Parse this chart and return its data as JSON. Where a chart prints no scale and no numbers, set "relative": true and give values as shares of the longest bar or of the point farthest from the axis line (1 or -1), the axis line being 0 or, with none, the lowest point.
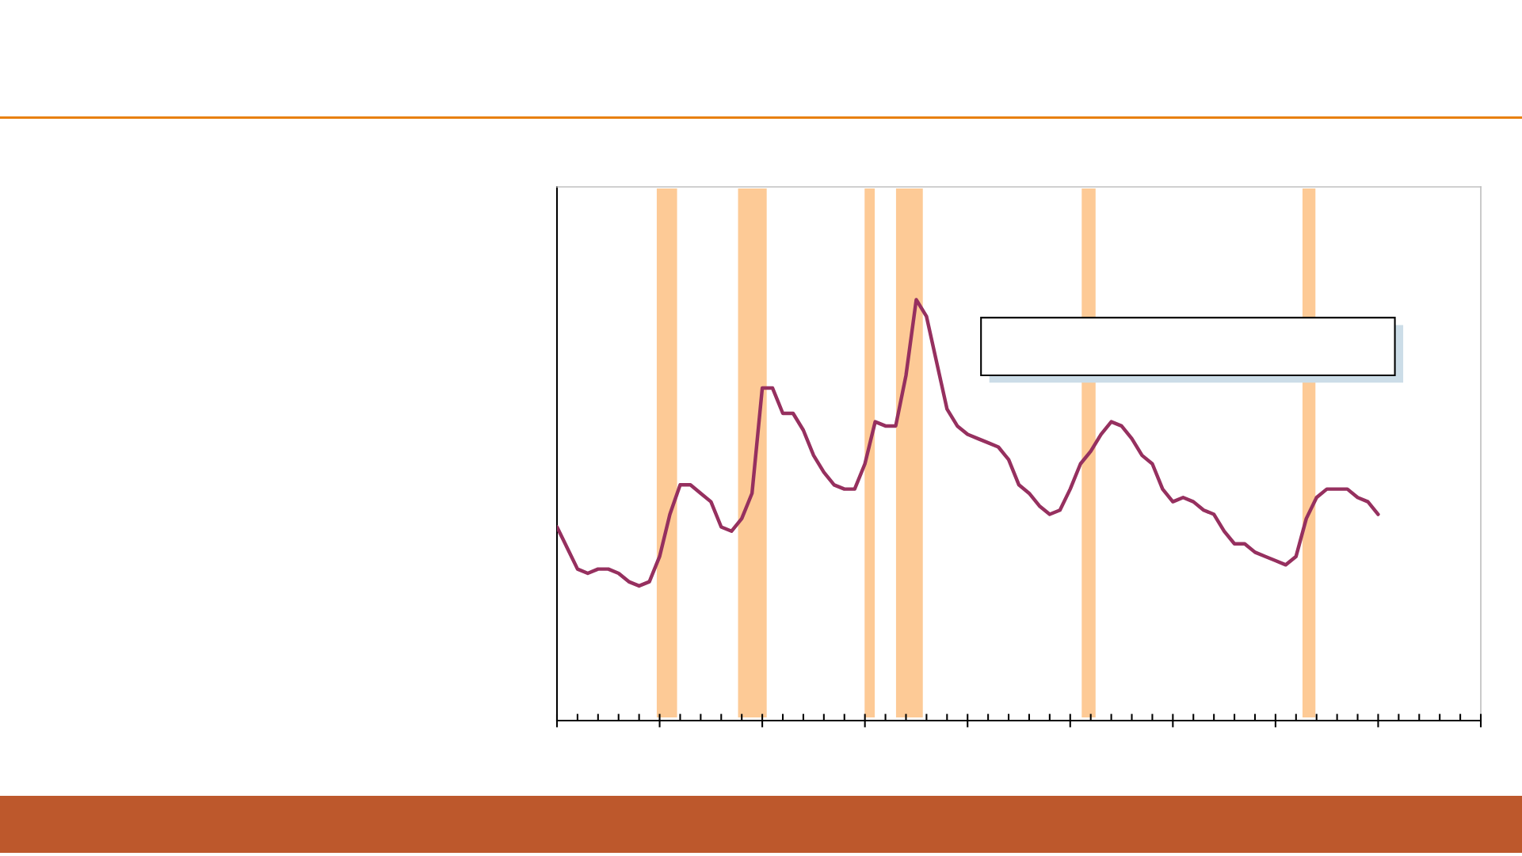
{
  "chart_data": {
    "type": "line",
    "relative": true,
    "categories": [
      null,
      null,
      null,
      null,
      null,
      null,
      null,
      null,
      null,
      null,
      null,
      null,
      null,
      null,
      null,
      null,
      null,
      null,
      null,
      null,
      null,
      null,
      null,
      null,
      null,
      null,
      null,
      null,
      null,
      null,
      null,
      null,
      null,
      null,
      null,
      null,
      null,
      null,
      null,
      null,
      null,
      null,
      null,
      null,
      null,
      null,
      null,
      null,
      null,
      null,
      null,
      null,
      null,
      null,
      null,
      null,
      null,
      null,
      null,
      null,
      null,
      null,
      null,
      null,
      null,
      null,
      null,
      null,
      null,
      null,
      null,
      null,
      null,
      null,
      null,
      null,
      null,
      null,
      null,
      null,
      null,
      null,
      null,
      null,
      null,
      null,
      null,
      null,
      null,
      null,
      null
    ],
    "series": [
      {
        "color": "#96305f",
        "values": [
          0.46,
          0.41,
          0.36,
          0.35,
          0.36,
          0.36,
          0.35,
          0.33,
          0.32,
          0.33,
          0.39,
          0.49,
          0.56,
          0.56,
          0.54,
          0.52,
          0.46,
          0.45,
          0.48,
          0.54,
          0.79,
          0.79,
          0.73,
          0.73,
          0.69,
          0.63,
          0.59,
          0.56,
          0.55,
          0.55,
          0.61,
          0.71,
          0.7,
          0.7,
          0.82,
          1,
          0.96,
          0.85,
          0.74,
          0.7,
          0.68,
          0.67,
          0.66,
          0.65,
          0.62,
          0.56,
          0.54,
          0.51,
          0.49,
          0.5,
          0.55,
          0.61,
          0.64,
          0.68,
          0.71,
          0.7,
          0.67,
          0.63,
          0.61,
          0.55,
          0.52,
          0.53,
          0.52,
          0.5,
          0.49,
          0.45,
          0.42,
          0.42,
          0.4,
          0.39,
          0.38,
          0.37,
          0.39,
          0.48,
          0.53,
          0.55,
          0.55,
          0.55,
          0.53,
          0.52,
          0.49,
          null,
          null,
          null,
          null,
          null,
          null,
          null,
          null,
          null,
          null
        ]
      }
    ]
  }
}
